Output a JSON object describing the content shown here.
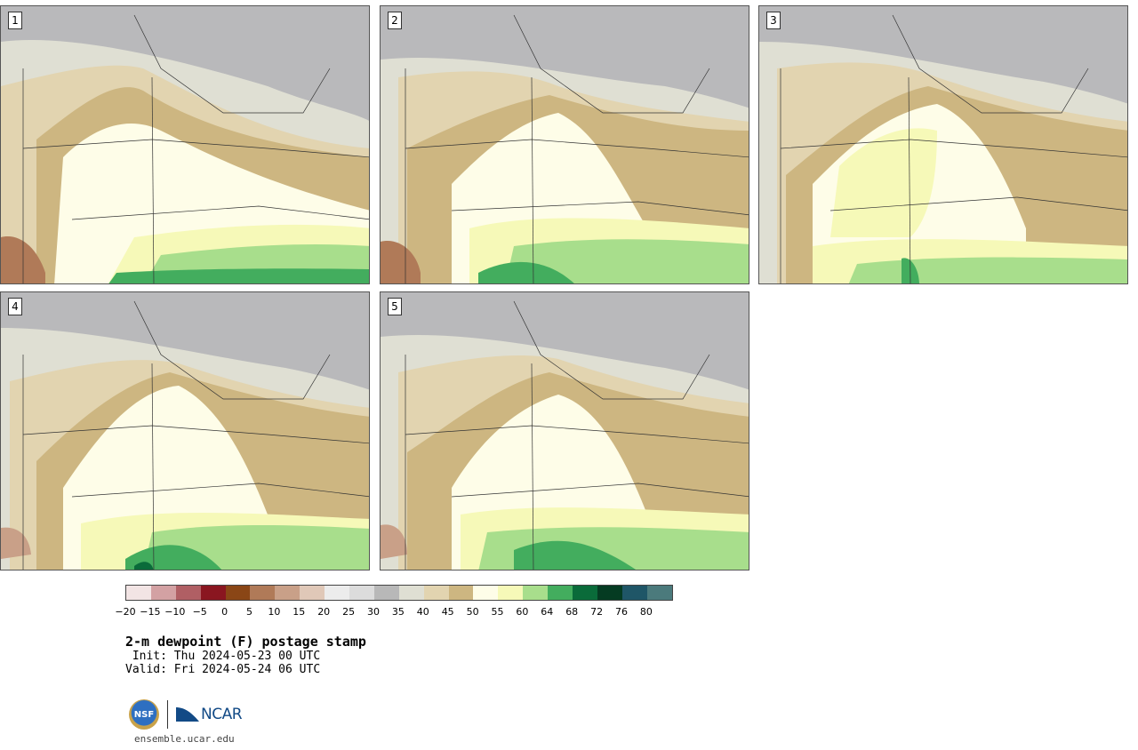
{
  "panels": [
    {
      "label": "1"
    },
    {
      "label": "2"
    },
    {
      "label": "3"
    },
    {
      "label": "4"
    },
    {
      "label": "5"
    }
  ],
  "colorbar": {
    "colors": [
      "#f2e4e4",
      "#d3a1a3",
      "#b05f64",
      "#8a1620",
      "#8a4616",
      "#b07a58",
      "#c9a088",
      "#e0c8b8",
      "#ececec",
      "#dcdcdc",
      "#b8b8b8",
      "#dfdfd3",
      "#e2d4b0",
      "#cdb681",
      "#fefde8",
      "#f6f9b8",
      "#a8de8c",
      "#43ad5e",
      "#0a6b3a",
      "#053b22",
      "#1f5667",
      "#4b7a7c"
    ],
    "ticks": [
      "−20",
      "−15",
      "−10",
      "−5",
      "0",
      "5",
      "10",
      "15",
      "20",
      "25",
      "30",
      "35",
      "40",
      "45",
      "50",
      "55",
      "60",
      "64",
      "68",
      "72",
      "76",
      "80"
    ]
  },
  "title": "2-m dewpoint (F) postage stamp",
  "init": " Init: Thu 2024-05-23 00 UTC",
  "valid": "Valid: Fri 2024-05-24 06 UTC",
  "logos": {
    "nsf": "NSF",
    "ncar": "NCAR"
  },
  "site": "ensemble.ucar.edu"
}
